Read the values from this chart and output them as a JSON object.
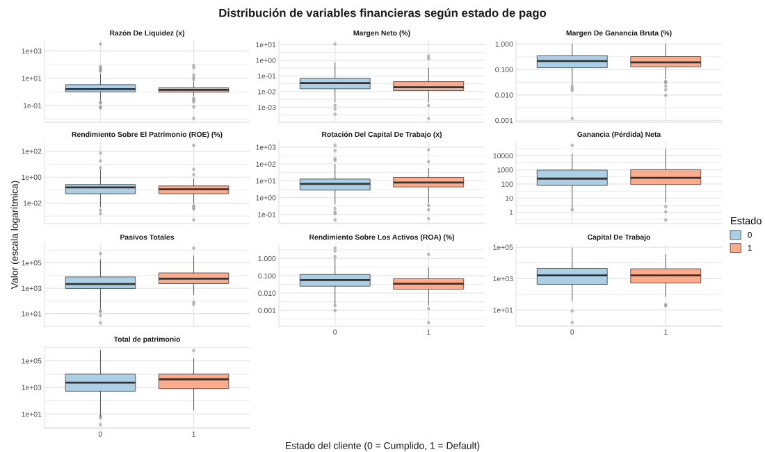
{
  "chart_data": [
    {
      "type": "other",
      "title": "Distribución de variables financieras según estado de pago",
      "xlabel": "Estado del cliente (0 = Cumplido, 1 = Default)",
      "ylabel": "Valor (escala logarítmica)",
      "legend": "right",
      "legend_title": "Estado",
      "series": [
        {
          "name": "0",
          "color": "#abd0e6"
        },
        {
          "name": "1",
          "color": "#fcab8c"
        }
      ]
    },
    {
      "type": "box",
      "title": "Razón De Liquidez (x)",
      "categories": [
        "0",
        "1"
      ],
      "colors": [
        "#abd0e6",
        "#fcab8c"
      ],
      "boxes": [
        {
          "low": 0.25,
          "q1": 1.0,
          "median": 1.6,
          "q3": 3.4,
          "high": 20,
          "outliers": [
            3100,
            72,
            54,
            40,
            32,
            0.18,
            0.15,
            0.08,
            0.065
          ]
        },
        {
          "low": 0.48,
          "q1": 0.95,
          "median": 1.4,
          "q3": 2.0,
          "high": 5.2,
          "outliers": [
            85,
            58,
            17,
            11,
            7.8,
            0.33,
            0.25,
            0.18,
            0.079,
            0.0115
          ]
        }
      ],
      "log": true,
      "ylim": [
        0.006,
        6000
      ],
      "yticks": [
        {
          "value": 1000,
          "label": "1e+03"
        },
        {
          "value": 100,
          "label": null
        },
        {
          "value": 10,
          "label": "1e+01"
        },
        {
          "value": 1,
          "label": null
        },
        {
          "value": 0.1,
          "label": "1e-01"
        },
        {
          "value": 0.01,
          "label": null
        }
      ],
      "grid": true,
      "marker": "circle",
      "tick_labels": "y"
    },
    {
      "type": "box",
      "title": "Margen Neto (%)",
      "categories": [
        "0",
        "1"
      ],
      "colors": [
        "#abd0e6",
        "#fcab8c"
      ],
      "boxes": [
        {
          "low": 0.0022,
          "q1": 0.015,
          "median": 0.035,
          "q3": 0.072,
          "high": 0.68,
          "outliers": [
            11,
            0.0013,
            0.00077,
            0.00035
          ]
        },
        {
          "low": 0.0022,
          "q1": 0.0115,
          "median": 0.019,
          "q3": 0.043,
          "high": 0.31,
          "outliers": [
            1.9,
            1.3,
            0.0013,
            0.00019
          ]
        }
      ],
      "log": true,
      "ylim": [
        0.00011,
        19
      ],
      "yticks": [
        {
          "value": 10,
          "label": "1e+01"
        },
        {
          "value": 3.16,
          "label": null
        },
        {
          "value": 1,
          "label": "1e+00"
        },
        {
          "value": 0.316,
          "label": null
        },
        {
          "value": 0.1,
          "label": "1e-01"
        },
        {
          "value": 0.0316,
          "label": null
        },
        {
          "value": 0.01,
          "label": "1e-02"
        },
        {
          "value": 0.00316,
          "label": null
        },
        {
          "value": 0.001,
          "label": "1e-03"
        },
        {
          "value": 0.000316,
          "label": null
        }
      ],
      "grid": true,
      "marker": "circle",
      "tick_labels": "y"
    },
    {
      "type": "box",
      "title": "Margen De Ganancia Bruta (%)",
      "categories": [
        "0",
        "1"
      ],
      "colors": [
        "#abd0e6",
        "#fcab8c"
      ],
      "boxes": [
        {
          "low": 0.026,
          "q1": 0.117,
          "median": 0.215,
          "q3": 0.35,
          "high": 1.0,
          "outliers": [
            0.022,
            0.018,
            0.015,
            0.0012
          ]
        },
        {
          "low": 0.043,
          "q1": 0.127,
          "median": 0.19,
          "q3": 0.32,
          "high": 1.0,
          "outliers": [
            0.034,
            0.03,
            0.022,
            0.016,
            0.0096
          ]
        }
      ],
      "log": true,
      "ylim": [
        0.00085,
        1.4
      ],
      "yticks": [
        {
          "value": 1,
          "label": "1.000"
        },
        {
          "value": 0.316,
          "label": null
        },
        {
          "value": 0.1,
          "label": "0.100"
        },
        {
          "value": 0.0316,
          "label": null
        },
        {
          "value": 0.01,
          "label": "0.010"
        },
        {
          "value": 0.00316,
          "label": null
        },
        {
          "value": 0.001,
          "label": "0.001"
        }
      ],
      "grid": true,
      "marker": "circle",
      "tick_labels": "y"
    },
    {
      "type": "box",
      "title": "Rendimiento Sobre El Patrimonio (ROE) (%)",
      "categories": [
        "0",
        "1"
      ],
      "colors": [
        "#abd0e6",
        "#fcab8c"
      ],
      "boxes": [
        {
          "low": 0.0053,
          "q1": 0.052,
          "median": 0.16,
          "q3": 0.27,
          "high": 3.6,
          "outliers": [
            5.4,
            18,
            73,
            0.0028,
            0.0015
          ]
        },
        {
          "low": 0.01,
          "q1": 0.052,
          "median": 0.115,
          "q3": 0.21,
          "high": 0.71,
          "outliers": [
            1.55,
            4.0,
            280,
            0.0062,
            0.0046,
            0.0033,
            0.0005
          ]
        }
      ],
      "log": true,
      "ylim": [
        0.00026,
        550
      ],
      "yticks": [
        {
          "value": 100,
          "label": "1e+02"
        },
        {
          "value": 10,
          "label": null
        },
        {
          "value": 1,
          "label": "1e+00"
        },
        {
          "value": 0.1,
          "label": null
        },
        {
          "value": 0.01,
          "label": "1e-02"
        },
        {
          "value": 0.001,
          "label": null
        }
      ],
      "grid": true,
      "marker": "circle",
      "tick_labels": "y"
    },
    {
      "type": "box",
      "title": "Rotación Del Capital De Trabajo (x)",
      "categories": [
        "0",
        "1"
      ],
      "colors": [
        "#abd0e6",
        "#fcab8c"
      ],
      "boxes": [
        {
          "low": 0.43,
          "q1": 2.8,
          "median": 6.6,
          "q3": 12.7,
          "high": 95,
          "outliers": [
            160,
            210,
            620,
            1260,
            0.23,
            0.145,
            0.11,
            0.048
          ]
        },
        {
          "low": 0.51,
          "q1": 4.3,
          "median": 7.9,
          "q3": 16,
          "high": 55,
          "outliers": [
            135,
            690,
            0.35,
            0.19,
            0.057
          ]
        }
      ],
      "log": true,
      "ylim": [
        0.029,
        2100
      ],
      "yticks": [
        {
          "value": 1000,
          "label": "1e+03"
        },
        {
          "value": 316,
          "label": null
        },
        {
          "value": 100,
          "label": "1e+02"
        },
        {
          "value": 31.6,
          "label": null
        },
        {
          "value": 10,
          "label": "1e+01"
        },
        {
          "value": 3.16,
          "label": null
        },
        {
          "value": 1,
          "label": "1e+00"
        },
        {
          "value": 0.316,
          "label": null
        },
        {
          "value": 0.1,
          "label": "1e-01"
        },
        {
          "value": 0.0316,
          "label": null
        }
      ],
      "grid": true,
      "marker": "circle",
      "tick_labels": "y"
    },
    {
      "type": "box",
      "title": "Ganancia (Pérdida) Neta",
      "categories": [
        "0",
        "1"
      ],
      "colors": [
        "#abd0e6",
        "#fcab8c"
      ],
      "boxes": [
        {
          "low": 1.6,
          "q1": 79,
          "median": 240,
          "q3": 960,
          "high": 13000,
          "outliers": [
            54000,
            1.5
          ]
        },
        {
          "low": 5.4,
          "q1": 93,
          "median": 275,
          "q3": 1040,
          "high": 28000,
          "outliers": [
            2.6,
            1.07,
            0.29
          ]
        }
      ],
      "log": true,
      "ylim": [
        0.16,
        98000
      ],
      "yticks": [
        {
          "value": 31600,
          "label": null
        },
        10000,
        {
          "value": 3160,
          "label": null
        },
        1000,
        {
          "value": 316,
          "label": null
        },
        100,
        {
          "value": 31.6,
          "label": null
        },
        10,
        {
          "value": 3.16,
          "label": null
        },
        1,
        {
          "value": 0.316,
          "label": null
        }
      ],
      "grid": true,
      "marker": "circle",
      "tick_labels": "y"
    },
    {
      "type": "box",
      "title": "Pasivos Totales",
      "categories": [
        "0",
        "1"
      ],
      "colors": [
        "#abd0e6",
        "#fcab8c"
      ],
      "boxes": [
        {
          "low": 26,
          "q1": 960,
          "median": 2100,
          "q3": 7700,
          "high": 175000,
          "outliers": [
            540000,
            19,
            14,
            7.2,
            1.9
          ]
        },
        {
          "low": 320,
          "q1": 2300,
          "median": 5600,
          "q3": 16000,
          "high": 330000,
          "outliers": [
            1400000,
            80,
            54
          ]
        }
      ],
      "log": true,
      "ylim": [
        1.0,
        2800000
      ],
      "yticks": [
        {
          "value": 1000000,
          "label": null
        },
        {
          "value": 100000,
          "label": "1e+05"
        },
        {
          "value": 10000,
          "label": null
        },
        {
          "value": 1000,
          "label": "1e+03"
        },
        {
          "value": 100,
          "label": null
        },
        {
          "value": 10,
          "label": "1e+01"
        }
      ],
      "grid": true,
      "marker": "circle",
      "tick_labels": "y"
    },
    {
      "type": "box",
      "title": "Rendimiento Sobre Los Activos (ROA) (%)",
      "categories": [
        "0",
        "1"
      ],
      "colors": [
        "#abd0e6",
        "#fcab8c"
      ],
      "boxes": [
        {
          "low": 0.0022,
          "q1": 0.025,
          "median": 0.057,
          "q3": 0.12,
          "high": 1.0,
          "outliers": [
            1.3,
            2.7,
            4.0,
            0.0019,
            0.001
          ]
        },
        {
          "low": 0.002,
          "q1": 0.0166,
          "median": 0.035,
          "q3": 0.068,
          "high": 0.29,
          "outliers": [
            1.7,
            0.00126,
            0.0002
          ]
        }
      ],
      "log": true,
      "ylim": [
        0.00012,
        6.5
      ],
      "yticks": [
        {
          "value": 3.16,
          "label": null
        },
        {
          "value": 1,
          "label": "1.000"
        },
        {
          "value": 0.316,
          "label": null
        },
        {
          "value": 0.1,
          "label": "0.100"
        },
        {
          "value": 0.0316,
          "label": null
        },
        {
          "value": 0.01,
          "label": "0.010"
        },
        {
          "value": 0.00316,
          "label": null
        },
        {
          "value": 0.001,
          "label": "0.001"
        },
        {
          "value": 0.000316,
          "label": null
        }
      ],
      "grid": true,
      "marker": "circle"
    },
    {
      "type": "box",
      "title": "Capital De Trabajo",
      "categories": [
        "0",
        "1"
      ],
      "colors": [
        "#abd0e6",
        "#fcab8c"
      ],
      "boxes": [
        {
          "low": 42,
          "q1": 430,
          "median": 1580,
          "q3": 4500,
          "high": 88000,
          "outliers": [
            8.7,
            1.6
          ]
        },
        {
          "low": 71,
          "q1": 520,
          "median": 1580,
          "q3": 4200,
          "high": 33000,
          "outliers": [
            22,
            18
          ]
        }
      ],
      "log": true,
      "ylim": [
        0.91,
        150000
      ],
      "yticks": [
        {
          "value": 100000,
          "label": "1e+05"
        },
        {
          "value": 10000,
          "label": null
        },
        {
          "value": 1000,
          "label": "1e+03"
        },
        {
          "value": 100,
          "label": null
        },
        {
          "value": 10,
          "label": "1e+01"
        },
        {
          "value": 1,
          "label": null
        }
      ],
      "grid": true,
      "marker": "circle"
    },
    {
      "type": "box",
      "title": "Total de patrimonio",
      "categories": [
        "0",
        "1"
      ],
      "colors": [
        "#abd0e6",
        "#fcab8c"
      ],
      "boxes": [
        {
          "low": 7.6,
          "q1": 520,
          "median": 2300,
          "q3": 10000,
          "high": 610000,
          "outliers": [
            6.9,
            5.2,
            1.6
          ]
        },
        {
          "low": 20,
          "q1": 810,
          "median": 4100,
          "q3": 10000,
          "high": 144000,
          "outliers": [
            590000
          ]
        }
      ],
      "log": true,
      "ylim": [
        0.83,
        1200000
      ],
      "yticks": [
        {
          "value": 1000000,
          "label": null
        },
        {
          "value": 100000,
          "label": "1e+05"
        },
        {
          "value": 10000,
          "label": null
        },
        {
          "value": 1000,
          "label": "1e+03"
        },
        {
          "value": 100,
          "label": null
        },
        {
          "value": 10,
          "label": "1e+01"
        },
        {
          "value": 1,
          "label": null
        }
      ],
      "grid": true,
      "marker": "circle"
    }
  ]
}
